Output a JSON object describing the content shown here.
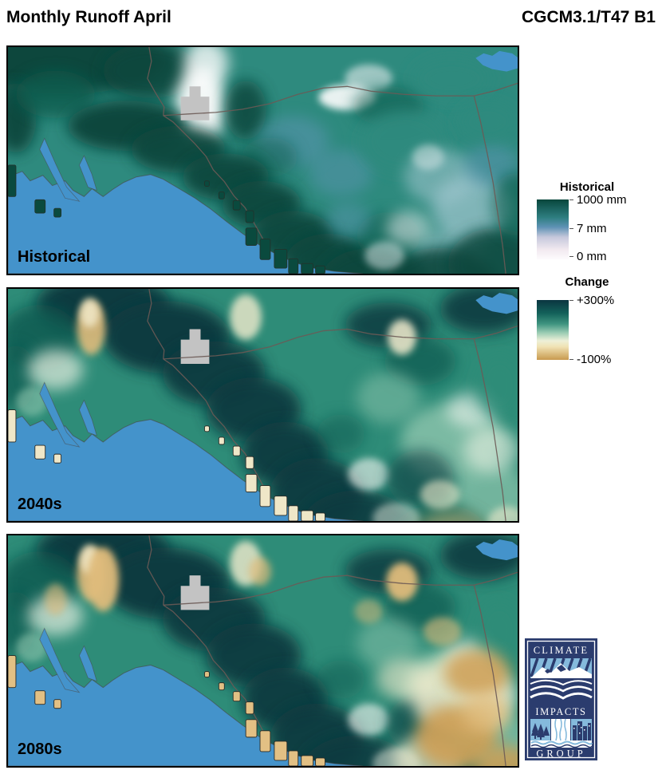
{
  "header": {
    "title": "Monthly Runoff April",
    "model": "CGCM3.1/T47 B1"
  },
  "panels": [
    {
      "id": "historical",
      "label": "Historical",
      "scheme": "hist"
    },
    {
      "id": "2040s",
      "label": "2040s",
      "scheme": "change"
    },
    {
      "id": "2080s",
      "label": "2080s",
      "scheme": "change"
    }
  ],
  "legends": {
    "historical": {
      "title": "Historical",
      "ticks": [
        "1000 mm",
        "7 mm",
        "0 mm"
      ]
    },
    "change": {
      "title": "Change",
      "ticks": [
        "+300%",
        "-100%"
      ]
    }
  },
  "logo": {
    "lines": [
      "CLIMATE",
      "IMPACTS",
      "GROUP"
    ]
  },
  "colors": {
    "ocean": "#4493CB",
    "border_line": "#6B5A55",
    "glacier_gray": "#C3C3C3",
    "coast_outline": "#4A3E36",
    "island_hist": "#0A4A3E",
    "island_2040": "#EFE7C8",
    "island_2080": "#E2C084",
    "hist": {
      "deep": "#07463C",
      "dark": "#0E5C4E",
      "mid": "#2E8A7E",
      "steel": "#5E96B6",
      "light": "#9CC4CC",
      "pale": "#E8EFF0",
      "white": "#FDFDFD"
    },
    "change": {
      "deep": "#0B3B40",
      "dark": "#10594F",
      "mid": "#2E8C78",
      "light": "#8FC6AE",
      "pale": "#E9F1E2",
      "white": "#FBFBF6",
      "cream": "#F3ECCE",
      "tan": "#E0BC7C",
      "tan_dark": "#CE9F54"
    },
    "legend_hist_stops": [
      "#07463C 0%",
      "#2E7E80 30%",
      "#5E92B4 46%",
      "#C6C8DC 63%",
      "#F2EAF0 84%",
      "#FDFBFD 100%"
    ],
    "legend_change_stops": [
      "#0A3540 0%",
      "#13615A 22%",
      "#3F9480 40%",
      "#9CCDB4 55%",
      "#EDF0D8 68%",
      "#F0E2B4 78%",
      "#C89A4E 100%"
    ],
    "logo_navy": "#2B3C6E",
    "logo_blue": "#85BADC"
  }
}
